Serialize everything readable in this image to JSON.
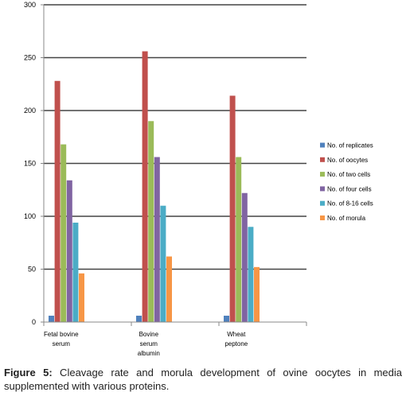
{
  "chart_data": {
    "type": "bar",
    "categories": [
      "Fetal bovine serum",
      "Bovine serum albumin",
      "Wheat peptone"
    ],
    "category_label_lines": [
      [
        "Fetal bovine",
        "serum"
      ],
      [
        "Bovine",
        "serum",
        "albumin"
      ],
      [
        "Wheat",
        "peptone"
      ]
    ],
    "series": [
      {
        "name": "No. of replicates",
        "color": "#4f81bd",
        "values": [
          6,
          6,
          6
        ]
      },
      {
        "name": "No. of oocytes",
        "color": "#c0504d",
        "values": [
          228,
          256,
          214
        ]
      },
      {
        "name": "No. of two cells",
        "color": "#9bbb59",
        "values": [
          168,
          190,
          156
        ]
      },
      {
        "name": "No. of four cells",
        "color": "#8064a2",
        "values": [
          134,
          156,
          122
        ]
      },
      {
        "name": "No. of 8-16 cells",
        "color": "#4bacc6",
        "values": [
          94,
          110,
          90
        ]
      },
      {
        "name": "No. of morula",
        "color": "#f79646",
        "values": [
          46,
          62,
          52
        ]
      }
    ],
    "ylim": [
      0,
      300
    ],
    "yticks": [
      0,
      50,
      100,
      150,
      200,
      250,
      300
    ],
    "grid": true,
    "legend_position": "right"
  },
  "caption": {
    "label": "Figure 5:",
    "text": " Cleavage rate and morula development of ovine oocytes in media supplemented with various proteins."
  }
}
